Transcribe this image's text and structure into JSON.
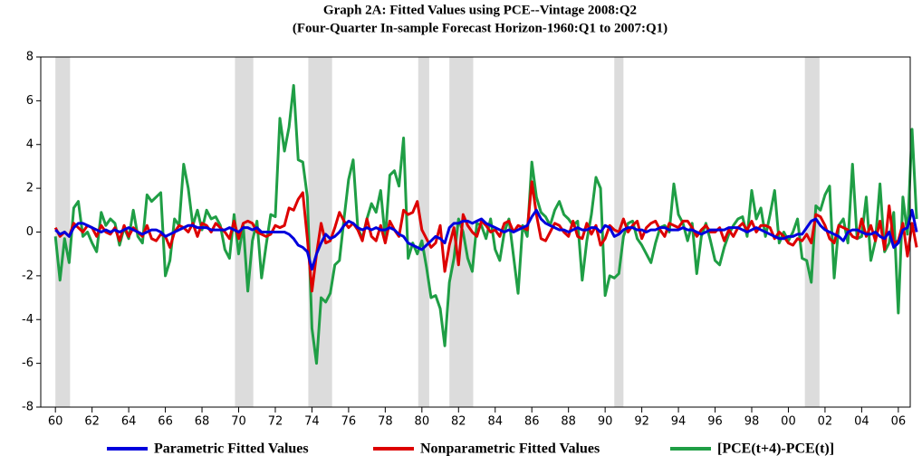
{
  "chart_data": {
    "type": "line",
    "title": "Graph 2A:  Fitted Values using PCE--Vintage 2008:Q2",
    "subtitle": "(Four-Quarter In-sample Forecast Horizon-1960:Q1 to 2007:Q1)",
    "xlim": [
      1959.2,
      2006.65
    ],
    "ylim": [
      -8,
      8
    ],
    "yticks": [
      -8,
      -6,
      -4,
      -2,
      0,
      2,
      4,
      6,
      8
    ],
    "xticks": [
      {
        "value": 1960,
        "label": "60"
      },
      {
        "value": 1962,
        "label": "62"
      },
      {
        "value": 1964,
        "label": "64"
      },
      {
        "value": 1966,
        "label": "66"
      },
      {
        "value": 1968,
        "label": "68"
      },
      {
        "value": 1970,
        "label": "70"
      },
      {
        "value": 1972,
        "label": "72"
      },
      {
        "value": 1974,
        "label": "74"
      },
      {
        "value": 1976,
        "label": "76"
      },
      {
        "value": 1978,
        "label": "78"
      },
      {
        "value": 1980,
        "label": "80"
      },
      {
        "value": 1982,
        "label": "82"
      },
      {
        "value": 1984,
        "label": "84"
      },
      {
        "value": 1986,
        "label": "86"
      },
      {
        "value": 1988,
        "label": "88"
      },
      {
        "value": 1990,
        "label": "90"
      },
      {
        "value": 1992,
        "label": "92"
      },
      {
        "value": 1994,
        "label": "94"
      },
      {
        "value": 1996,
        "label": "96"
      },
      {
        "value": 1998,
        "label": "98"
      },
      {
        "value": 2000,
        "label": "00"
      },
      {
        "value": 2002,
        "label": "02"
      },
      {
        "value": 2004,
        "label": "04"
      },
      {
        "value": 2006,
        "label": "06"
      }
    ],
    "shaded_periods": [
      [
        1960.0,
        1960.8
      ],
      [
        1969.8,
        1970.8
      ],
      [
        1973.8,
        1975.1
      ],
      [
        1979.8,
        1980.4
      ],
      [
        1981.5,
        1982.8
      ],
      [
        1990.5,
        1991.0
      ],
      [
        2000.9,
        2001.7
      ]
    ],
    "shade_color": "#dcdcdc",
    "x": [
      1960,
      1960.25,
      1960.5,
      1960.75,
      1961,
      1961.25,
      1961.5,
      1961.75,
      1962,
      1962.25,
      1962.5,
      1962.75,
      1963,
      1963.25,
      1963.5,
      1963.75,
      1964,
      1964.25,
      1964.5,
      1964.75,
      1965,
      1965.25,
      1965.5,
      1965.75,
      1966,
      1966.25,
      1966.5,
      1966.75,
      1967,
      1967.25,
      1967.5,
      1967.75,
      1968,
      1968.25,
      1968.5,
      1968.75,
      1969,
      1969.25,
      1969.5,
      1969.75,
      1970,
      1970.25,
      1970.5,
      1970.75,
      1971,
      1971.25,
      1971.5,
      1971.75,
      1972,
      1972.25,
      1972.5,
      1972.75,
      1973,
      1973.25,
      1973.5,
      1973.75,
      1974,
      1974.25,
      1974.5,
      1974.75,
      1975,
      1975.25,
      1975.5,
      1975.75,
      1976,
      1976.25,
      1976.5,
      1976.75,
      1977,
      1977.25,
      1977.5,
      1977.75,
      1978,
      1978.25,
      1978.5,
      1978.75,
      1979,
      1979.25,
      1979.5,
      1979.75,
      1980,
      1980.25,
      1980.5,
      1980.75,
      1981,
      1981.25,
      1981.5,
      1981.75,
      1982,
      1982.25,
      1982.5,
      1982.75,
      1983,
      1983.25,
      1983.5,
      1983.75,
      1984,
      1984.25,
      1984.5,
      1984.75,
      1985,
      1985.25,
      1985.5,
      1985.75,
      1986,
      1986.25,
      1986.5,
      1986.75,
      1987,
      1987.25,
      1987.5,
      1987.75,
      1988,
      1988.25,
      1988.5,
      1988.75,
      1989,
      1989.25,
      1989.5,
      1989.75,
      1990,
      1990.25,
      1990.5,
      1990.75,
      1991,
      1991.25,
      1991.5,
      1991.75,
      1992,
      1992.25,
      1992.5,
      1992.75,
      1993,
      1993.25,
      1993.5,
      1993.75,
      1994,
      1994.25,
      1994.5,
      1994.75,
      1995,
      1995.25,
      1995.5,
      1995.75,
      1996,
      1996.25,
      1996.5,
      1996.75,
      1997,
      1997.25,
      1997.5,
      1997.75,
      1998,
      1998.25,
      1998.5,
      1998.75,
      1999,
      1999.25,
      1999.5,
      1999.75,
      2000,
      2000.25,
      2000.5,
      2000.75,
      2001,
      2001.25,
      2001.5,
      2001.75,
      2002,
      2002.25,
      2002.5,
      2002.75,
      2003,
      2003.25,
      2003.5,
      2003.75,
      2004,
      2004.25,
      2004.5,
      2004.75,
      2005,
      2005.25,
      2005.5,
      2005.75,
      2006,
      2006.25,
      2006.5,
      2006.75,
      2007
    ],
    "series": [
      {
        "name": "Parametric Fitted Values",
        "color": "#0000dd",
        "values": [
          0.1,
          -0.1,
          0.0,
          -0.2,
          0.2,
          0.4,
          0.4,
          0.3,
          0.2,
          0.1,
          0.0,
          0.1,
          0.0,
          0.1,
          0.0,
          0.1,
          0.2,
          0.1,
          0.0,
          -0.1,
          0.0,
          0.1,
          0.1,
          0.0,
          -0.2,
          -0.1,
          0.0,
          0.1,
          0.2,
          0.3,
          0.3,
          0.2,
          0.2,
          0.2,
          0.1,
          0.1,
          0.1,
          0.1,
          0.2,
          0.1,
          0.0,
          0.2,
          0.2,
          0.1,
          0.2,
          0.0,
          0.0,
          0.0,
          0.0,
          0.0,
          0.0,
          -0.1,
          -0.3,
          -0.6,
          -0.7,
          -0.9,
          -1.7,
          -1.0,
          -0.5,
          -0.1,
          -0.3,
          -0.2,
          0.0,
          0.3,
          0.5,
          0.4,
          0.2,
          0.1,
          0.2,
          0.1,
          0.2,
          0.1,
          0.1,
          0.2,
          0.1,
          -0.1,
          -0.2,
          -0.5,
          -0.6,
          -0.7,
          -0.8,
          -0.6,
          -0.4,
          -0.2,
          -0.3,
          -0.5,
          0.2,
          0.4,
          0.4,
          0.5,
          0.5,
          0.4,
          0.5,
          0.6,
          0.4,
          0.3,
          0.2,
          0.1,
          0.0,
          0.1,
          0.0,
          0.1,
          0.2,
          0.3,
          0.7,
          1.0,
          0.6,
          0.4,
          0.3,
          0.2,
          0.1,
          0.1,
          0.0,
          0.1,
          0.2,
          0.1,
          0.1,
          0.2,
          0.2,
          0.0,
          0.3,
          0.2,
          -0.2,
          -0.1,
          0.1,
          0.2,
          0.2,
          0.1,
          0.1,
          0.0,
          0.1,
          0.1,
          0.2,
          0.2,
          0.1,
          0.1,
          0.1,
          0.2,
          0.1,
          0.1,
          0.0,
          -0.1,
          0.0,
          0.1,
          0.1,
          0.1,
          0.1,
          0.2,
          0.2,
          0.2,
          0.1,
          0.0,
          0.1,
          0.2,
          0.1,
          0.0,
          -0.1,
          -0.2,
          -0.3,
          -0.3,
          -0.2,
          -0.2,
          -0.1,
          -0.1,
          0.2,
          0.5,
          0.6,
          0.3,
          0.1,
          0.0,
          -0.1,
          -0.2,
          -0.4,
          0.0,
          0.1,
          0.1,
          0.0,
          -0.1,
          -0.1,
          0.0,
          -0.2,
          -0.3,
          0.0,
          -0.7,
          -0.5,
          0.1,
          0.2,
          1.0,
          0.0
        ]
      },
      {
        "name": "Nonparametric Fitted Values",
        "color": "#dd0000",
        "values": [
          0.2,
          -0.2,
          0.0,
          -0.2,
          0.4,
          0.2,
          0.0,
          0.3,
          0.2,
          -0.2,
          0.3,
          0.0,
          -0.1,
          0.2,
          -0.4,
          0.3,
          -0.2,
          0.2,
          0.0,
          -0.2,
          0.3,
          -0.3,
          -0.4,
          -0.1,
          -0.2,
          -0.7,
          0.0,
          0.3,
          0.2,
          0.0,
          0.4,
          -0.2,
          0.4,
          0.3,
          0.0,
          0.4,
          0.2,
          0.0,
          -0.3,
          0.5,
          -0.3,
          0.4,
          0.5,
          0.4,
          0.0,
          -0.1,
          -0.2,
          -0.1,
          0.3,
          0.2,
          0.3,
          1.1,
          1.0,
          1.5,
          1.8,
          -0.3,
          -2.7,
          -1.0,
          0.4,
          -0.5,
          -0.4,
          0.2,
          0.9,
          0.5,
          0.2,
          0.4,
          0.1,
          -0.4,
          0.6,
          -0.2,
          -0.4,
          0.3,
          -0.5,
          0.5,
          0.1,
          -0.2,
          1.0,
          0.8,
          0.9,
          1.4,
          0.1,
          -0.3,
          -0.7,
          -0.5,
          0.3,
          -1.8,
          -0.6,
          0.2,
          -1.5,
          0.8,
          0.3,
          0.0,
          -0.2,
          0.5,
          0.3,
          0.0,
          0.1,
          -0.2,
          0.4,
          0.5,
          0.0,
          0.3,
          0.2,
          0.1,
          2.3,
          0.8,
          -0.3,
          -0.4,
          0.0,
          0.4,
          0.3,
          0.0,
          -0.2,
          0.5,
          -0.2,
          -0.3,
          0.4,
          -0.1,
          0.3,
          -0.6,
          -0.3,
          0.3,
          0.1,
          0.0,
          0.6,
          0.0,
          0.3,
          0.5,
          -0.3,
          0.2,
          0.4,
          0.5,
          0.1,
          -0.2,
          0.4,
          0.3,
          0.2,
          0.5,
          0.5,
          0.2,
          -0.2,
          0.1,
          0.3,
          0.0,
          0.0,
          0.2,
          -0.4,
          0.1,
          -0.2,
          0.2,
          0.4,
          0.1,
          0.5,
          0.0,
          0.3,
          0.3,
          0.2,
          -0.3,
          0.0,
          -0.2,
          -0.5,
          -0.6,
          -0.3,
          -0.4,
          -0.1,
          -0.5,
          0.8,
          0.7,
          0.3,
          -0.3,
          -0.5,
          0.3,
          0.2,
          0.1,
          -0.2,
          -0.3,
          0.6,
          -0.2,
          0.3,
          -0.4,
          0.5,
          -0.8,
          1.2,
          -0.5,
          -0.4,
          0.4,
          -1.1,
          0.4,
          -0.7
        ]
      },
      {
        "name": "[PCE(t+4)-PCE(t)]",
        "color": "#1f9e45",
        "values": [
          -0.2,
          -2.2,
          -0.3,
          -1.4,
          1.1,
          1.4,
          -0.2,
          0.0,
          -0.5,
          -0.9,
          0.9,
          0.3,
          0.6,
          0.4,
          -0.6,
          0.2,
          -0.3,
          1.0,
          -0.2,
          -0.5,
          1.7,
          1.4,
          1.6,
          1.8,
          -2.0,
          -1.3,
          0.6,
          0.3,
          3.1,
          2.0,
          0.3,
          1.0,
          0.1,
          1.0,
          0.6,
          0.7,
          0.3,
          -0.8,
          -1.2,
          0.8,
          -1.0,
          0.3,
          -2.7,
          -0.4,
          0.5,
          -2.1,
          -0.6,
          0.8,
          0.7,
          5.2,
          3.7,
          4.8,
          6.7,
          3.3,
          3.2,
          1.6,
          -4.4,
          -6.0,
          -3.0,
          -3.2,
          -2.8,
          -1.5,
          -1.3,
          0.6,
          2.4,
          3.3,
          0.2,
          -0.3,
          0.6,
          1.3,
          0.9,
          1.9,
          -0.3,
          2.6,
          2.8,
          2.1,
          4.3,
          -1.2,
          -0.5,
          -1.0,
          -0.4,
          -1.6,
          -3.0,
          -2.9,
          -3.5,
          -5.2,
          -2.3,
          -1.2,
          0.6,
          0.0,
          -1.2,
          -1.8,
          0.4,
          0.3,
          -0.3,
          0.6,
          -0.8,
          -1.3,
          0.0,
          0.6,
          -1.1,
          -2.8,
          0.3,
          -0.2,
          3.2,
          1.6,
          0.9,
          0.7,
          0.3,
          1.0,
          1.4,
          0.8,
          0.6,
          0.3,
          0.5,
          -2.2,
          -0.4,
          0.8,
          2.5,
          2.0,
          -2.9,
          -2.0,
          -2.1,
          -1.9,
          -0.2,
          0.4,
          0.5,
          -0.3,
          -0.6,
          -1.0,
          -1.4,
          -0.5,
          0.2,
          0.3,
          0.0,
          2.2,
          0.8,
          0.4,
          -0.4,
          0.4,
          -1.9,
          -0.2,
          0.4,
          -0.4,
          -1.3,
          -1.5,
          -0.7,
          -0.1,
          0.3,
          0.6,
          0.7,
          -0.2,
          1.9,
          0.6,
          1.1,
          -0.2,
          0.8,
          1.9,
          -0.5,
          0.0,
          -0.4,
          0.0,
          0.6,
          -1.2,
          -1.3,
          -2.3,
          1.2,
          1.0,
          1.7,
          2.1,
          -2.1,
          0.3,
          0.6,
          -0.5,
          3.1,
          -0.3,
          -0.2,
          1.6,
          -1.3,
          -0.4,
          2.2,
          -0.9,
          -0.5,
          0.9,
          -3.7,
          1.6,
          -0.1,
          4.7,
          0.6
        ]
      }
    ]
  }
}
